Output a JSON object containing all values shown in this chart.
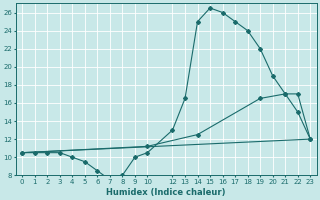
{
  "xlabel": "Humidex (Indice chaleur)",
  "bg_color": "#c8e8e8",
  "line_color": "#1a6b6b",
  "grid_color": "#ffffff",
  "series1_x": [
    0,
    1,
    2,
    3,
    4,
    5,
    6,
    7,
    8,
    9,
    10,
    12,
    13,
    14,
    15,
    16,
    17,
    18,
    19,
    20,
    21,
    22,
    23
  ],
  "series1_y": [
    10.5,
    10.5,
    10.5,
    10.5,
    10.0,
    9.5,
    8.5,
    7.5,
    8.0,
    10.0,
    10.5,
    13.0,
    16.5,
    25.0,
    26.5,
    26.0,
    25.0,
    24.0,
    22.0,
    19.0,
    17.0,
    15.0,
    12.0
  ],
  "series2_x": [
    0,
    23
  ],
  "series2_y": [
    10.5,
    12.0
  ],
  "series3_x": [
    0,
    10,
    14,
    19,
    21,
    22,
    23
  ],
  "series3_y": [
    10.5,
    11.2,
    12.5,
    16.5,
    17.0,
    17.0,
    12.0
  ],
  "xmin": -0.5,
  "xmax": 23.5,
  "ymin": 8,
  "ymax": 27,
  "yticks": [
    8,
    10,
    12,
    14,
    16,
    18,
    20,
    22,
    24,
    26
  ],
  "xticks": [
    0,
    1,
    2,
    3,
    4,
    5,
    6,
    7,
    8,
    9,
    10,
    12,
    13,
    14,
    15,
    16,
    17,
    18,
    19,
    20,
    21,
    22,
    23
  ],
  "xlabel_fontsize": 6.0,
  "tick_fontsize": 5.0
}
